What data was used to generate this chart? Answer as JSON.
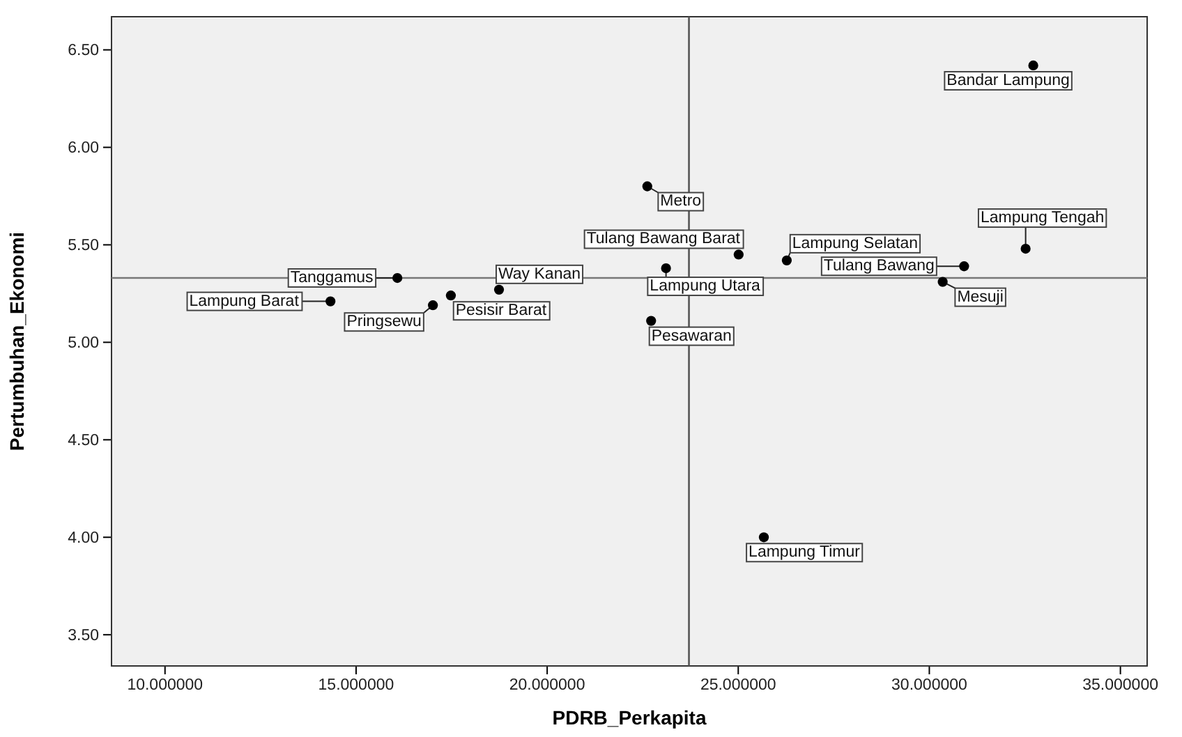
{
  "chart_data": {
    "type": "scatter",
    "xlabel": "PDRB_Perkapita",
    "ylabel": "Pertumbuhan_Ekonomi",
    "marker": "circle",
    "grid": false,
    "xlim": [
      8.6,
      35.7
    ],
    "ylim": [
      3.34,
      6.67
    ],
    "xticks": [
      {
        "value": 10,
        "label": "10.000000"
      },
      {
        "value": 15,
        "label": "15.000000"
      },
      {
        "value": 20,
        "label": "20.000000"
      },
      {
        "value": 25,
        "label": "25.000000"
      },
      {
        "value": 30,
        "label": "30.000000"
      },
      {
        "value": 35,
        "label": "35.000000"
      }
    ],
    "yticks": [
      {
        "value": 3.5,
        "label": "3.50"
      },
      {
        "value": 4,
        "label": "4.00"
      },
      {
        "value": 4.5,
        "label": "4.50"
      },
      {
        "value": 5,
        "label": "5.00"
      },
      {
        "value": 5.5,
        "label": "5.50"
      },
      {
        "value": 6,
        "label": "6.00"
      },
      {
        "value": 6.5,
        "label": "6.50"
      }
    ],
    "ref_lines": [
      {
        "axis": "x",
        "value": 23.71,
        "color": "#555555"
      },
      {
        "axis": "y",
        "value": 5.33,
        "color": "#777777"
      }
    ],
    "series": [
      {
        "color": "#000000",
        "x": [
          32.72,
          22.62,
          25.01,
          26.27,
          30.91,
          32.52,
          30.35,
          23.11,
          22.72,
          25.67,
          16.08,
          14.33,
          17.01,
          17.48,
          18.74
        ],
        "values": [
          6.42,
          5.8,
          5.45,
          5.42,
          5.39,
          5.48,
          5.31,
          5.38,
          5.11,
          4.0,
          5.33,
          5.21,
          5.19,
          5.24,
          5.27
        ],
        "value_labels": [
          "Bandar Lampung",
          "Metro",
          "Tulang Bawang Barat",
          "Lampung Selatan",
          "Tulang Bawang",
          "Lampung Tengah",
          "Mesuji",
          "Lampung Utara",
          "Pesawaran",
          "Lampung Timur",
          "Tanggamus",
          "Lampung Barat",
          "Pringsewu",
          "Pesisir Barat",
          "Way Kanan"
        ]
      }
    ]
  }
}
